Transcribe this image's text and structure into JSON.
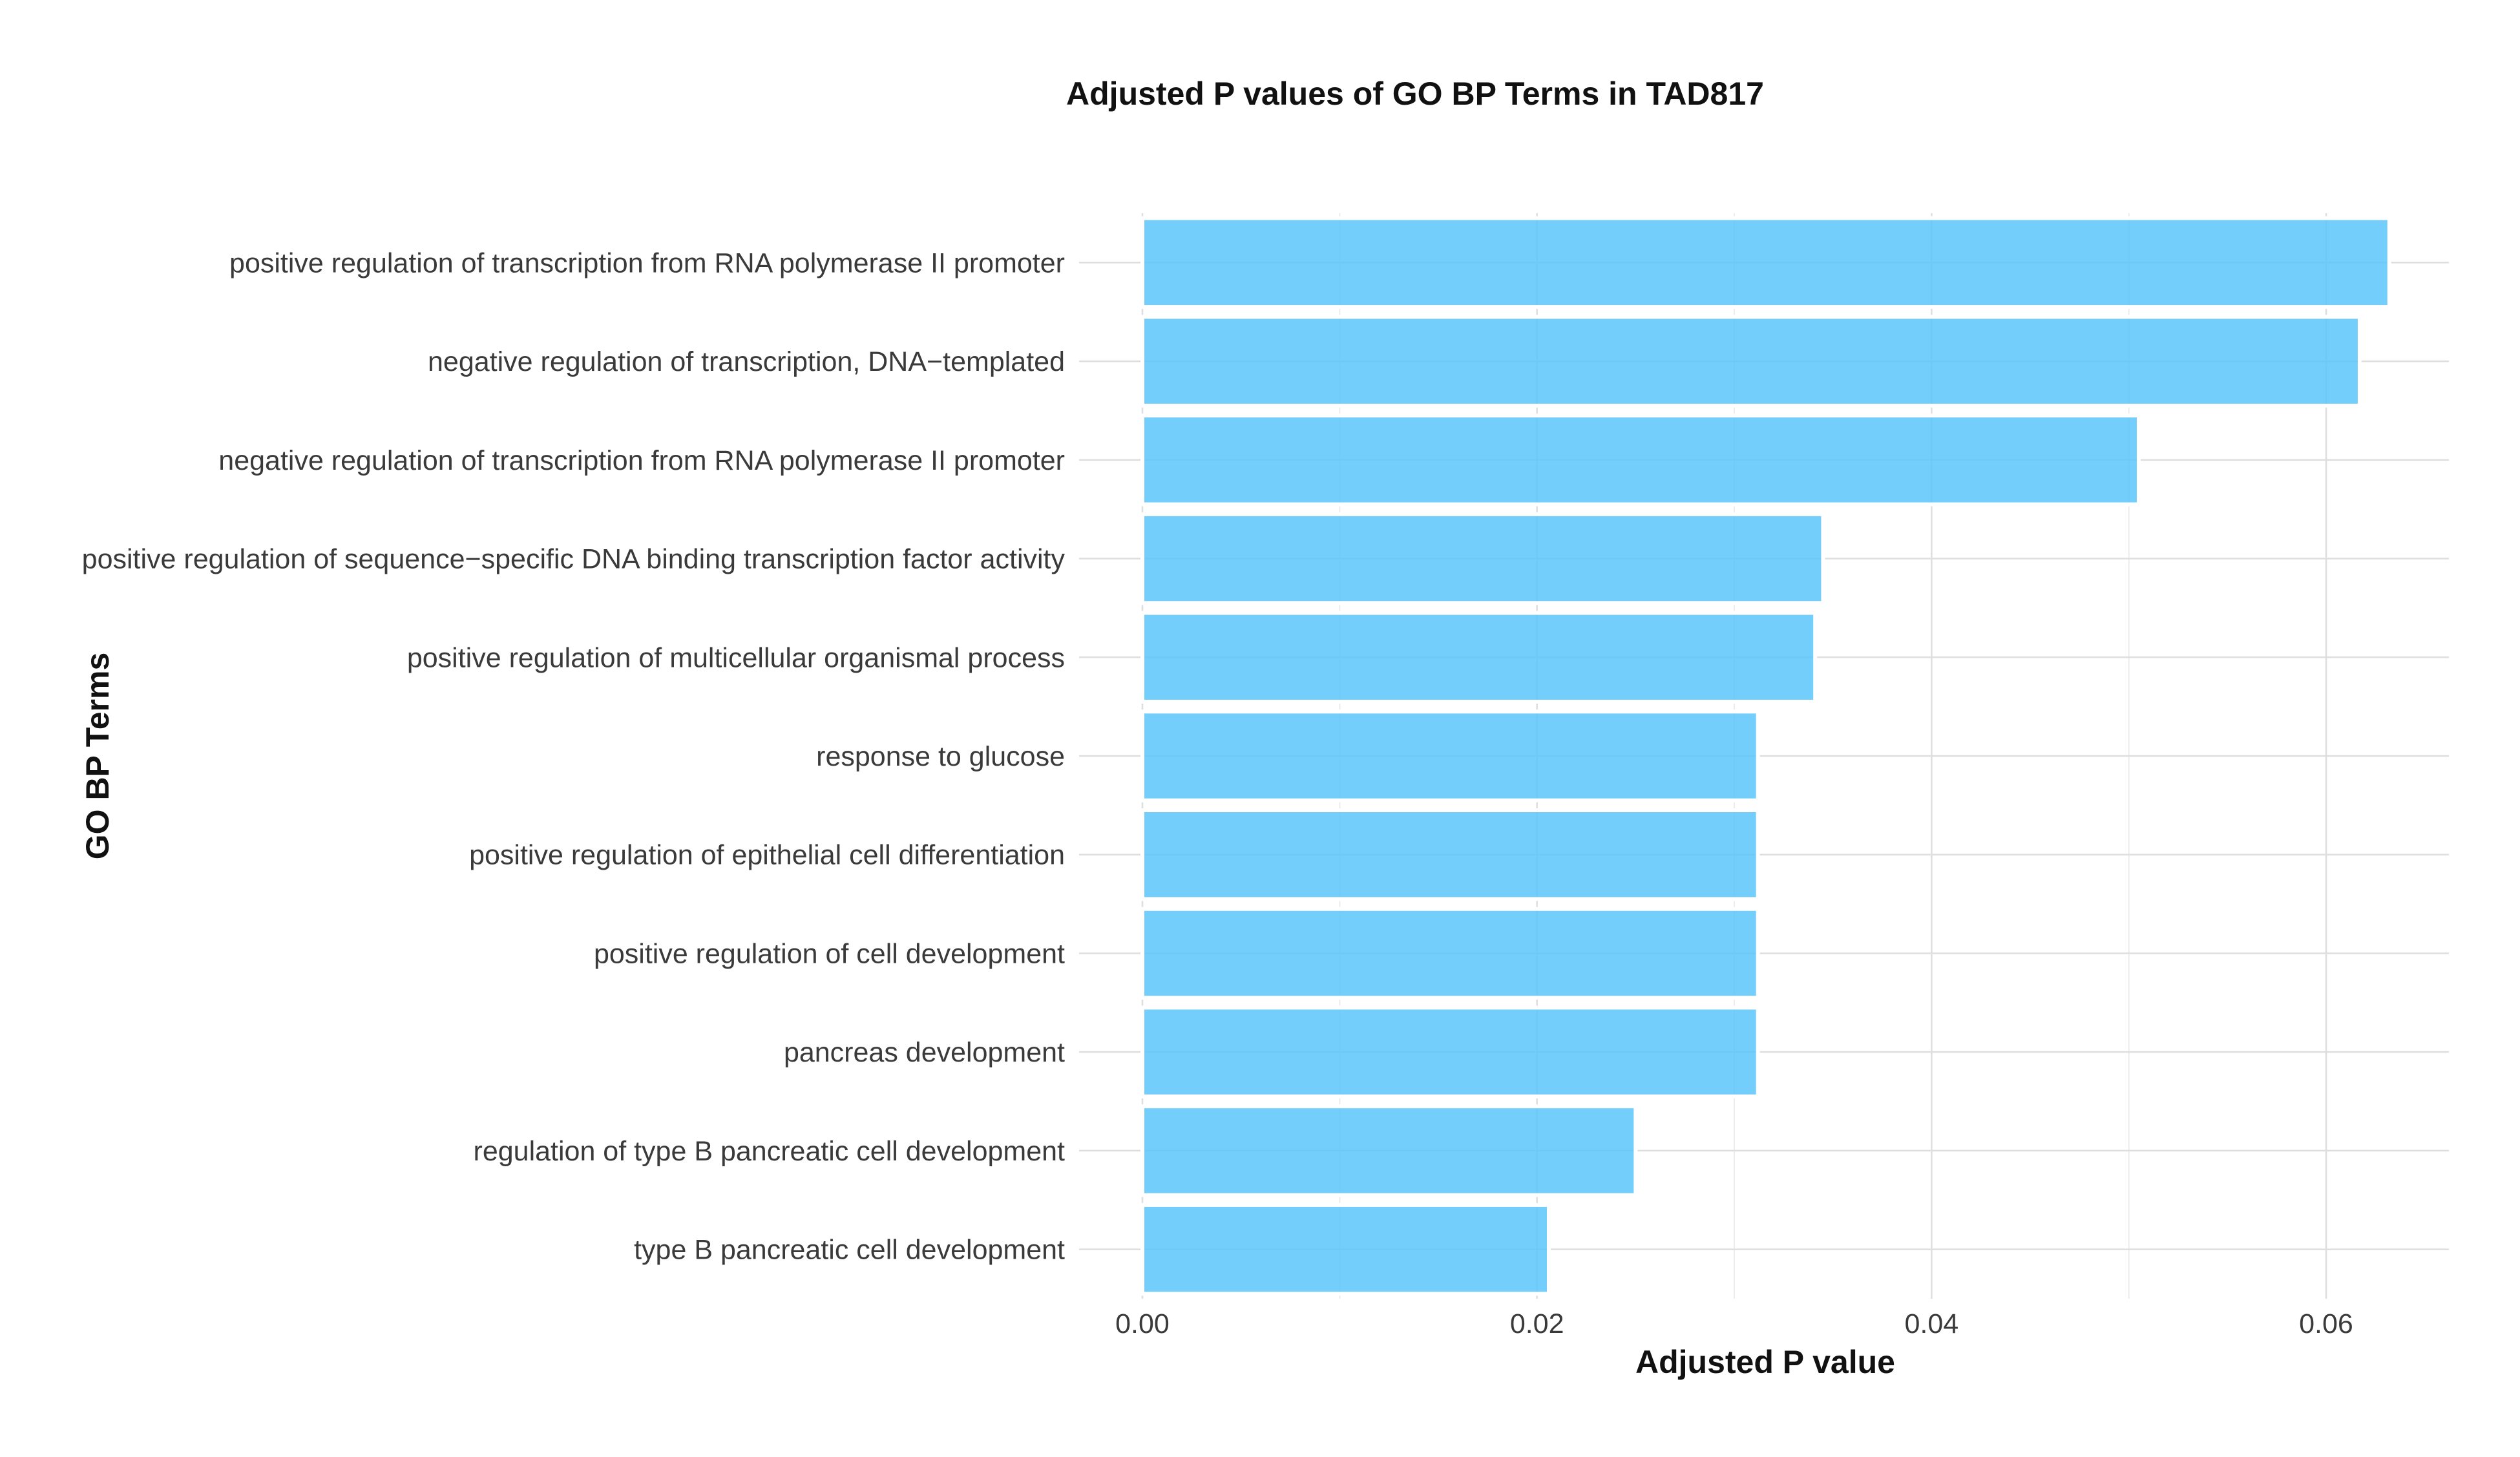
{
  "chart_data": {
    "type": "bar",
    "orientation": "horizontal",
    "title": "Adjusted P values of GO BP Terms in TAD817",
    "xlabel": "Adjusted P value",
    "ylabel": "GO BP Terms",
    "categories": [
      "positive regulation of transcription from RNA polymerase II promoter",
      "negative regulation of transcription, DNA−templated",
      "negative regulation of transcription from RNA polymerase II promoter",
      "positive regulation of sequence−specific DNA binding transcription factor activity",
      "positive regulation of multicellular organismal process",
      "response to glucose",
      "positive regulation of epithelial cell differentiation",
      "positive regulation of cell development",
      "pancreas development",
      "regulation of type B pancreatic cell development",
      "type B pancreatic cell development"
    ],
    "values": [
      0.0632,
      0.0617,
      0.0505,
      0.0345,
      0.0341,
      0.0312,
      0.0312,
      0.0312,
      0.0312,
      0.025,
      0.0206
    ],
    "xlim": [
      0,
      0.0663
    ],
    "x_ticks": [
      0,
      0.02,
      0.04,
      0.06
    ],
    "x_tick_labels": [
      "0.00",
      "0.02",
      "0.04",
      "0.06"
    ],
    "bar_color": "#5bc5fb",
    "grid": true,
    "legend": "none"
  }
}
